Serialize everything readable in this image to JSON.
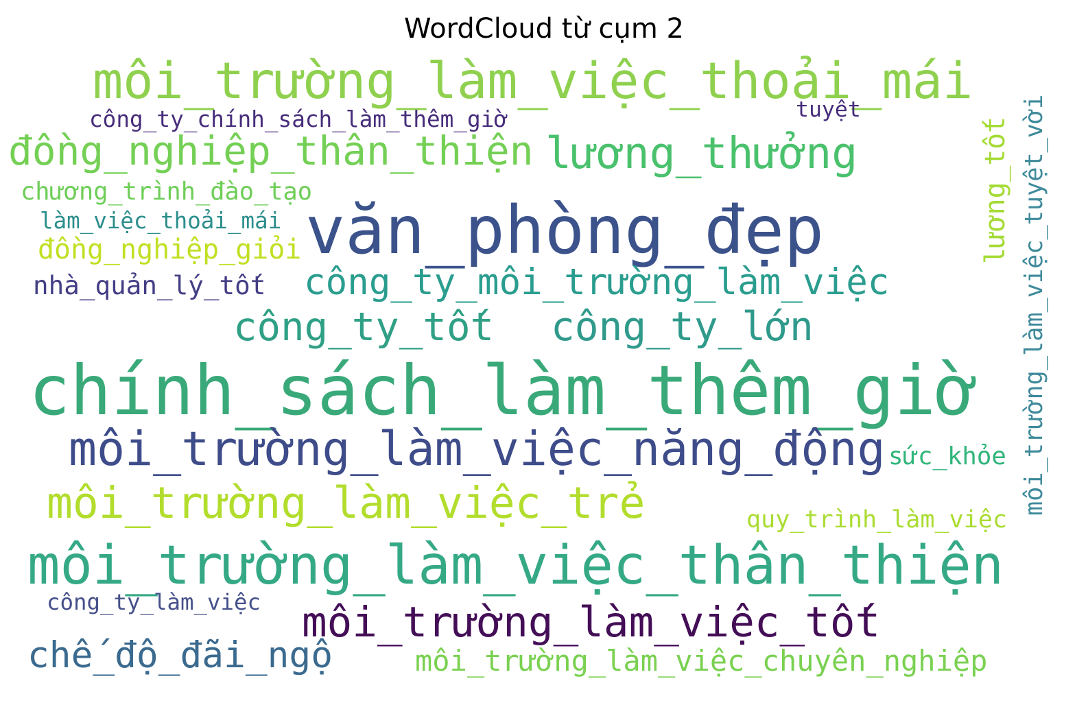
{
  "title": "WordCloud từ cụm 2",
  "words": [
    {
      "text": "môi_trường_làm_việc_thoải_mái",
      "color": "#8fd14f"
    },
    {
      "text": "công_ty_chính_sách_làm_thêm_giờ",
      "color": "#472d7b"
    },
    {
      "text": "tuyệt",
      "color": "#472d7b"
    },
    {
      "text": "đồng_nghiệp_thân_thiện",
      "color": "#74d055"
    },
    {
      "text": "lương_thưởng",
      "color": "#4ac16d"
    },
    {
      "text": "chương_trình_đào_tạo",
      "color": "#6ece58"
    },
    {
      "text": "làm_việc_thoải_mái",
      "color": "#2c8e8c"
    },
    {
      "text": "văn_phòng_đẹp",
      "color": "#3b528b"
    },
    {
      "text": "đồng_nghiệp_giỏi",
      "color": "#c2df23"
    },
    {
      "text": "nhà_quản_lý_tốt",
      "color": "#433e85"
    },
    {
      "text": "công_ty_môi_trường_làm_việc",
      "color": "#2a9d8f"
    },
    {
      "text": "công_ty_tốt",
      "color": "#2fa085"
    },
    {
      "text": "công_ty_lớn",
      "color": "#2f9a8b"
    },
    {
      "text": "chính_sách_làm_thêm_giờ",
      "color": "#3aa979"
    },
    {
      "text": "môi_trường_làm_việc_năng_động",
      "color": "#3e4c8a"
    },
    {
      "text": "sức_khỏe",
      "color": "#31b57b"
    },
    {
      "text": "môi_trường_làm_việc_trẻ",
      "color": "#b2dd2d"
    },
    {
      "text": "quy_trình_làm_việc",
      "color": "#aadc32"
    },
    {
      "text": "môi_trường_làm_việc_thân_thiện",
      "color": "#35a986"
    },
    {
      "text": "công_ty_làm_việc",
      "color": "#46508a"
    },
    {
      "text": "môi_trường_làm_việc_tốt",
      "color": "#440e57"
    },
    {
      "text": "chế_độ_đãi_ngộ",
      "color": "#3b6a8f"
    },
    {
      "text": "môi_trường_làm_việc_chuyên_nghiệp",
      "color": "#7ad151"
    },
    {
      "text": "lương_tốt",
      "color": "#a5db36"
    },
    {
      "text": "môi_trường_làm_việc_tuyệt_vời",
      "color": "#3f8a9b"
    }
  ]
}
